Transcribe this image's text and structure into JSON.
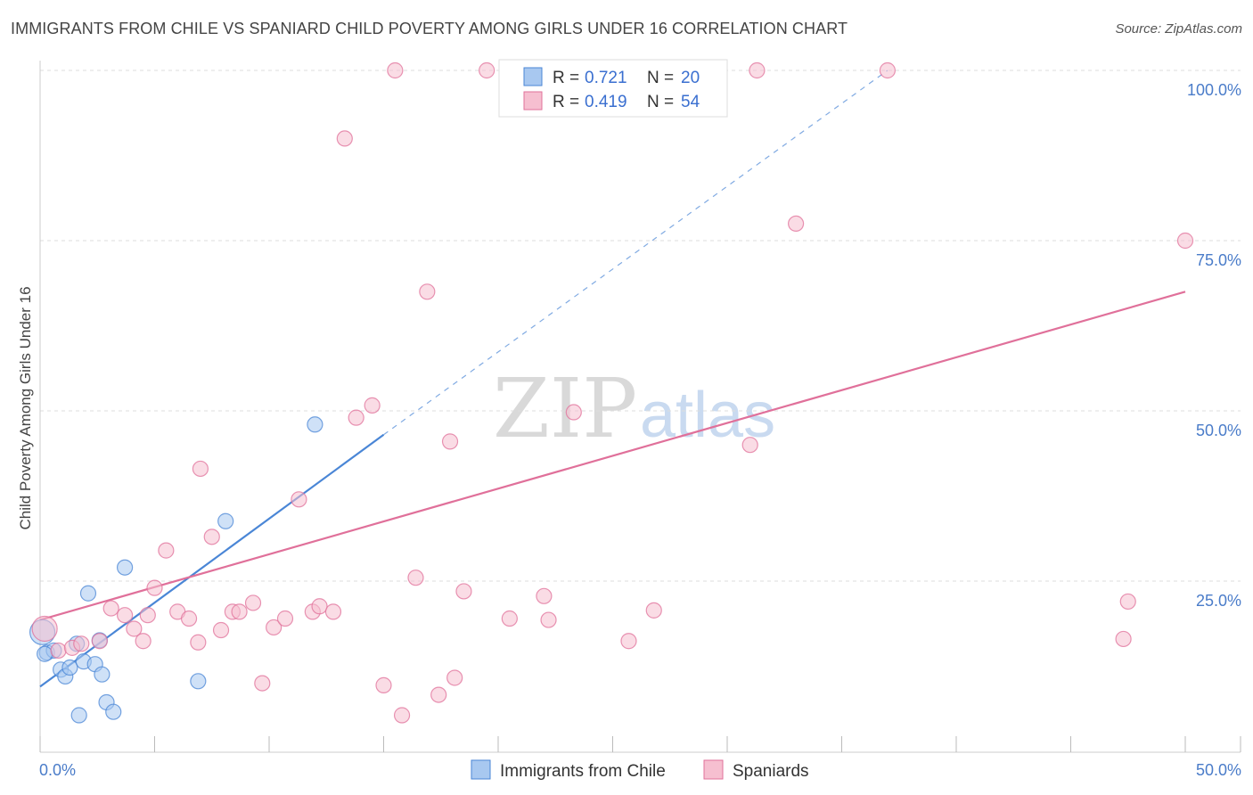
{
  "header": {
    "title": "IMMIGRANTS FROM CHILE VS SPANIARD CHILD POVERTY AMONG GIRLS UNDER 16 CORRELATION CHART",
    "source": "Source: ZipAtlas.com"
  },
  "watermark": {
    "zip": "ZIP",
    "atlas": "atlas"
  },
  "legend": {
    "r_label": "R =",
    "n_label": "N =",
    "rows": [
      {
        "r": "0.721",
        "n": "20"
      },
      {
        "r": "0.419",
        "n": "54"
      }
    ]
  },
  "chart_data": {
    "type": "scatter",
    "title": "IMMIGRANTS FROM CHILE VS SPANIARD CHILD POVERTY AMONG GIRLS UNDER 16 CORRELATION CHART",
    "xlabel": "",
    "ylabel": "Child Poverty Among Girls Under 16",
    "xlim": [
      0,
      50
    ],
    "ylim": [
      0,
      102
    ],
    "x_tick_labels": [
      "0.0%",
      "50.0%"
    ],
    "y_ticks": [
      {
        "value": 25,
        "label": "25.0%"
      },
      {
        "value": 50,
        "label": "50.0%"
      },
      {
        "value": 75,
        "label": "75.0%"
      },
      {
        "value": 100,
        "label": "100.0%"
      }
    ],
    "series": [
      {
        "name": "Immigrants from Chile",
        "color": "#4a86d6",
        "fill": "#a8c8f0",
        "R": 0.721,
        "N": 20,
        "trend": {
          "x0": 0,
          "y0": 9.5,
          "x1": 15,
          "y1": 46.5,
          "dash_x1": 37,
          "dash_y1": 100
        },
        "points": [
          [
            0.1,
            17.5
          ],
          [
            0.3,
            14.5
          ],
          [
            0.6,
            14.8
          ],
          [
            0.9,
            12.0
          ],
          [
            1.1,
            11.0
          ],
          [
            1.3,
            12.3
          ],
          [
            1.6,
            15.8
          ],
          [
            1.9,
            13.2
          ],
          [
            2.1,
            23.2
          ],
          [
            2.4,
            12.8
          ],
          [
            2.7,
            11.3
          ],
          [
            2.9,
            7.2
          ],
          [
            3.2,
            5.8
          ],
          [
            3.7,
            27.0
          ],
          [
            1.7,
            5.3
          ],
          [
            2.6,
            16.3
          ],
          [
            6.9,
            10.3
          ],
          [
            8.1,
            33.8
          ],
          [
            12.0,
            48.0
          ],
          [
            0.2,
            14.3
          ]
        ]
      },
      {
        "name": "Spaniards",
        "color": "#e0709a",
        "fill": "#f6bfd0",
        "R": 0.419,
        "N": 54,
        "trend": {
          "x0": 0,
          "y0": 19.3,
          "x1": 50,
          "y1": 67.5
        },
        "points": [
          [
            0.2,
            18.0
          ],
          [
            0.8,
            14.8
          ],
          [
            1.4,
            15.2
          ],
          [
            1.8,
            15.8
          ],
          [
            2.6,
            16.2
          ],
          [
            3.1,
            21.0
          ],
          [
            3.7,
            20.0
          ],
          [
            4.1,
            18.0
          ],
          [
            4.7,
            20.0
          ],
          [
            5.0,
            24.0
          ],
          [
            5.5,
            29.5
          ],
          [
            6.0,
            20.5
          ],
          [
            6.5,
            19.5
          ],
          [
            7.0,
            41.5
          ],
          [
            7.5,
            31.5
          ],
          [
            7.9,
            17.8
          ],
          [
            8.4,
            20.5
          ],
          [
            8.7,
            20.5
          ],
          [
            9.3,
            21.8
          ],
          [
            9.7,
            10.0
          ],
          [
            10.2,
            18.2
          ],
          [
            10.7,
            19.5
          ],
          [
            11.3,
            37.0
          ],
          [
            11.9,
            20.5
          ],
          [
            12.2,
            21.3
          ],
          [
            12.8,
            20.5
          ],
          [
            13.3,
            90.0
          ],
          [
            13.8,
            49.0
          ],
          [
            14.5,
            50.8
          ],
          [
            15.0,
            9.7
          ],
          [
            15.5,
            100.0
          ],
          [
            15.8,
            5.3
          ],
          [
            16.4,
            25.5
          ],
          [
            16.9,
            67.5
          ],
          [
            17.4,
            8.3
          ],
          [
            17.9,
            45.5
          ],
          [
            18.1,
            10.8
          ],
          [
            18.5,
            23.5
          ],
          [
            19.5,
            100.0
          ],
          [
            20.5,
            19.5
          ],
          [
            22.0,
            22.8
          ],
          [
            22.2,
            19.3
          ],
          [
            23.3,
            49.8
          ],
          [
            25.7,
            16.2
          ],
          [
            26.8,
            20.7
          ],
          [
            31.0,
            45.0
          ],
          [
            31.3,
            100.0
          ],
          [
            33.0,
            77.5
          ],
          [
            37.0,
            100.0
          ],
          [
            47.3,
            16.5
          ],
          [
            47.5,
            22.0
          ],
          [
            50.0,
            75.0
          ],
          [
            6.9,
            16.0
          ],
          [
            4.5,
            16.2
          ]
        ]
      }
    ]
  },
  "colors": {
    "chile": "#4a86d6",
    "spaniards": "#e0709a",
    "tick_text": "#4a7cc9",
    "grid": "#dddddd"
  }
}
